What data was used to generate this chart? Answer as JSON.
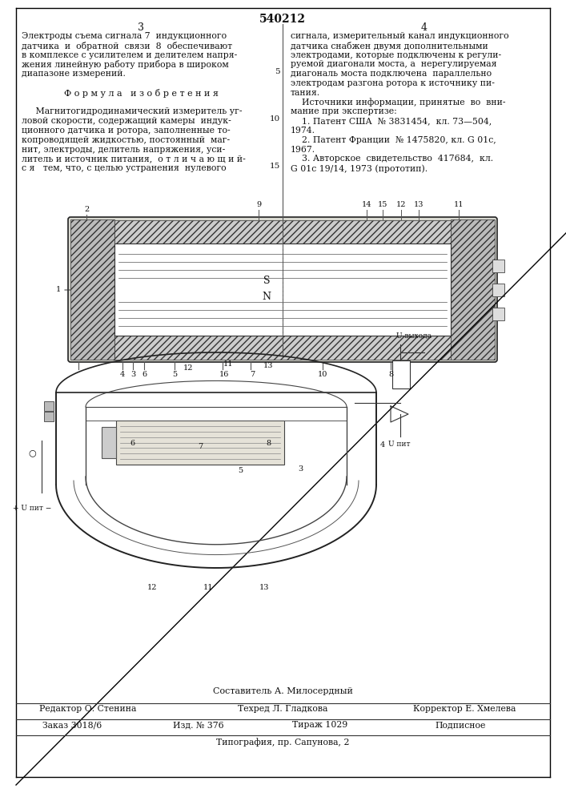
{
  "patent_number": "540212",
  "bg_color": "#ffffff",
  "text_color": "#111111",
  "left_col_lines": [
    "Электроды съема сигнала 7  индукционного",
    "датчика  и  обратной  связи  8  обеспечивают",
    "в комплексе с усилителем и делителем напря-",
    "жения линейную работу прибора в широком",
    "диапазоне измерений.",
    "",
    "Ф о р м у л а   и з о б р е т е н и я",
    "",
    "     Магнитогидродинамический измеритель уг-",
    "ловой скорости, содержащий камеры  индук-",
    "ционного датчика и ротора, заполненные то-",
    "копроводящей жидкостью, постоянный  маг-",
    "нит, электроды, делитель напряжения, уси-",
    "литель и источник питания,  о т л и ч а ю щ и й-",
    "с я   тем, что, с целью устранения  нулевого"
  ],
  "right_col_lines": [
    "сигнала, измерительный канал индукционного",
    "датчика снабжен двумя дополнительными",
    "электродами, которые подключены к регули-",
    "руемой диагонали моста, а  нерегулируемая",
    "диагональ моста подключена  параллельно",
    "электродам разгона ротора к источнику пи-",
    "тания.",
    "    Источники информации, принятые  во  вни-",
    "мание при экспертизе:",
    "    1. Патент США  № 3831454,  кл. 73—504,",
    "1974.",
    "    2. Патент Франции  № 1475820, кл. G 01c,",
    "1967.",
    "    3. Авторское  свидетельство  417684,  кл.",
    "G 01c 19/14, 1973 (прототип)."
  ],
  "line_numbers": [
    5,
    10,
    15
  ],
  "footer_compiler": "Составитель А. Милосердный",
  "footer_row1": [
    "Редактор О. Стенина",
    "Техред Л. Гладкова",
    "Корректор Е. Хмелева"
  ],
  "footer_row2": [
    "Заказ 3018/6",
    "Изд. № 376",
    "Тираж 1029",
    "Подписное"
  ],
  "footer_print": "Типография, пр. Сапунова, 2"
}
